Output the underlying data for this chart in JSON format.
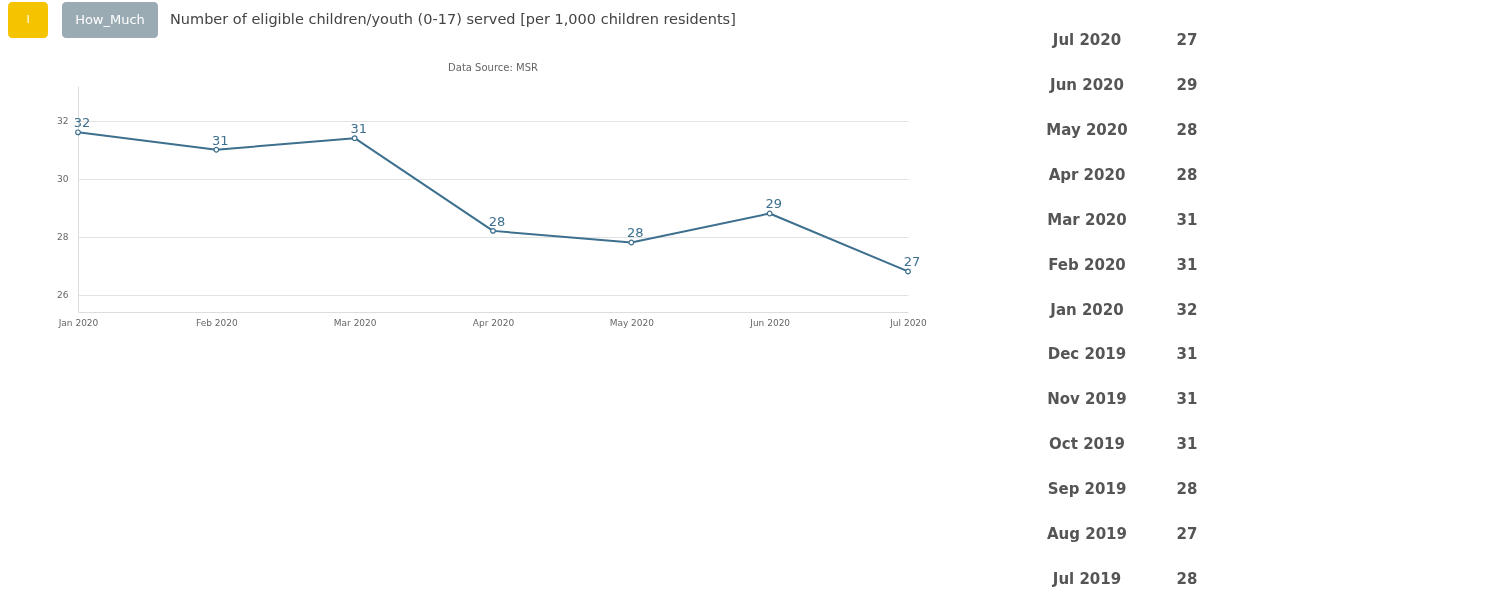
{
  "chart_data": [
    {
      "type": "line",
      "title": "Number of eligible children/youth (0-17) served [per 1,000 children residents]",
      "subtitle": "Data Source: MSR",
      "annotations": [
        "I",
        "How_Much"
      ],
      "categories": [
        "Jan 2020",
        "Feb 2020",
        "Mar 2020",
        "Apr 2020",
        "May 2020",
        "Jun 2020",
        "Jul 2020"
      ],
      "series": [
        {
          "color": "#3d6f8e",
          "values": [
            31.6,
            31.0,
            31.4,
            28.2,
            27.8,
            28.8,
            26.8
          ],
          "value_labels": [
            "32",
            "31",
            "31",
            "28",
            "28",
            "29",
            "27"
          ]
        }
      ],
      "ylim": [
        25.4,
        33.2
      ],
      "yticks": [
        26,
        28,
        30,
        32
      ],
      "grid": "y",
      "marker": "circle",
      "line_style": "solid"
    },
    {
      "type": "other",
      "categories": [
        "Jul 2020",
        "Jun 2020",
        "May 2020",
        "Apr 2020",
        "Mar 2020",
        "Feb 2020",
        "Jan 2020",
        "Dec 2019",
        "Nov 2019",
        "Oct 2019",
        "Sep 2019",
        "Aug 2019",
        "Jul 2019"
      ],
      "values": [
        27,
        29,
        28,
        28,
        31,
        31,
        32,
        31,
        31,
        31,
        28,
        27,
        28
      ],
      "data_labels": true
    }
  ]
}
